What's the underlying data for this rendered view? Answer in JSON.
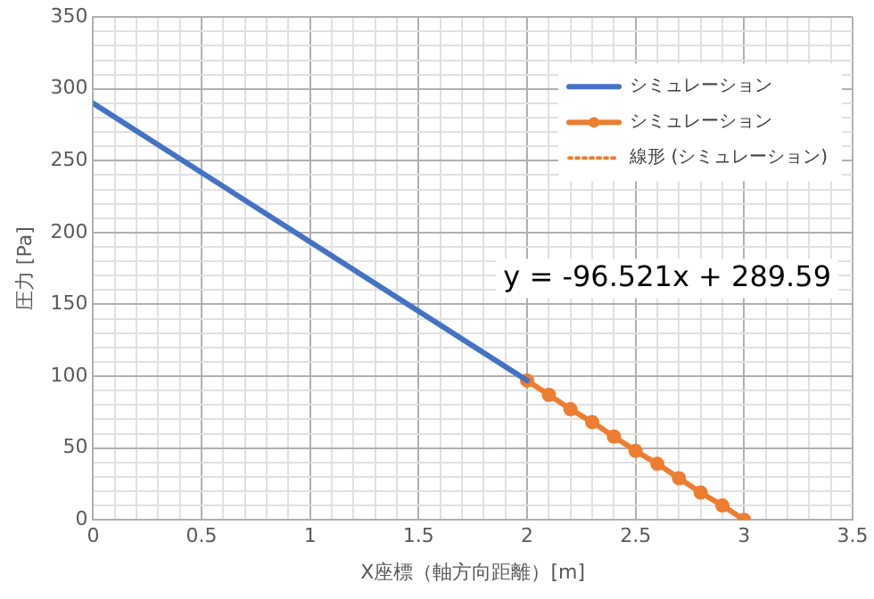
{
  "chart_data": {
    "type": "line",
    "xlabel": "X座標（軸方向距離）[m]",
    "ylabel": "圧力 [Pa]",
    "xlim": [
      0,
      3.5
    ],
    "ylim": [
      0,
      350
    ],
    "xticks": [
      0,
      {
        "value": 0.1,
        "label": null
      },
      {
        "value": 0.2,
        "label": null
      },
      {
        "value": 0.3,
        "label": null
      },
      {
        "value": 0.4,
        "label": null
      },
      0.5,
      {
        "value": 0.6,
        "label": null
      },
      {
        "value": 0.7,
        "label": null
      },
      {
        "value": 0.8,
        "label": null
      },
      {
        "value": 0.9,
        "label": null
      },
      1,
      {
        "value": 1.1,
        "label": null
      },
      {
        "value": 1.2,
        "label": null
      },
      {
        "value": 1.3,
        "label": null
      },
      {
        "value": 1.4,
        "label": null
      },
      1.5,
      {
        "value": 1.6,
        "label": null
      },
      {
        "value": 1.7,
        "label": null
      },
      {
        "value": 1.8,
        "label": null
      },
      {
        "value": 1.9,
        "label": null
      },
      2,
      {
        "value": 2.1,
        "label": null
      },
      {
        "value": 2.2,
        "label": null
      },
      {
        "value": 2.3,
        "label": null
      },
      {
        "value": 2.4,
        "label": null
      },
      2.5,
      {
        "value": 2.6,
        "label": null
      },
      {
        "value": 2.7,
        "label": null
      },
      {
        "value": 2.8,
        "label": null
      },
      {
        "value": 2.9,
        "label": null
      },
      3,
      {
        "value": 3.1,
        "label": null
      },
      {
        "value": 3.2,
        "label": null
      },
      {
        "value": 3.3,
        "label": null
      },
      {
        "value": 3.4,
        "label": null
      },
      3.5
    ],
    "yticks": [
      0,
      {
        "value": 10,
        "label": null
      },
      {
        "value": 20,
        "label": null
      },
      {
        "value": 30,
        "label": null
      },
      {
        "value": 40,
        "label": null
      },
      50,
      {
        "value": 60,
        "label": null
      },
      {
        "value": 70,
        "label": null
      },
      {
        "value": 80,
        "label": null
      },
      {
        "value": 90,
        "label": null
      },
      100,
      {
        "value": 110,
        "label": null
      },
      {
        "value": 120,
        "label": null
      },
      {
        "value": 130,
        "label": null
      },
      {
        "value": 140,
        "label": null
      },
      150,
      {
        "value": 160,
        "label": null
      },
      {
        "value": 170,
        "label": null
      },
      {
        "value": 180,
        "label": null
      },
      {
        "value": 190,
        "label": null
      },
      200,
      {
        "value": 210,
        "label": null
      },
      {
        "value": 220,
        "label": null
      },
      {
        "value": 230,
        "label": null
      },
      {
        "value": 240,
        "label": null
      },
      250,
      {
        "value": 260,
        "label": null
      },
      {
        "value": 270,
        "label": null
      },
      {
        "value": 280,
        "label": null
      },
      {
        "value": 290,
        "label": null
      },
      300,
      {
        "value": 310,
        "label": null
      },
      {
        "value": 320,
        "label": null
      },
      {
        "value": 330,
        "label": null
      },
      {
        "value": 340,
        "label": null
      },
      350
    ],
    "grid": true,
    "legend": "top right",
    "annotations": [
      "y = -96.521x + 289.59"
    ],
    "series": [
      {
        "name": "シミュレーション",
        "color": "#4472c4",
        "marker": "none",
        "line_style": "solid",
        "x": [
          0,
          2
        ],
        "values": [
          290,
          97
        ]
      },
      {
        "name": "シミュレーション",
        "color": "#ed7d31",
        "marker": "circle",
        "line_style": "solid",
        "x": [
          2,
          2.1,
          2.2,
          2.3,
          2.4,
          2.5,
          2.6,
          2.7,
          2.8,
          2.9,
          3
        ],
        "values": [
          97,
          87,
          77,
          68,
          58,
          48,
          39,
          29,
          19,
          10,
          0
        ]
      },
      {
        "name": "線形 (シミュレーション)",
        "color": "#ed7d31",
        "marker": "none",
        "line_style": "dotted"
      }
    ]
  }
}
